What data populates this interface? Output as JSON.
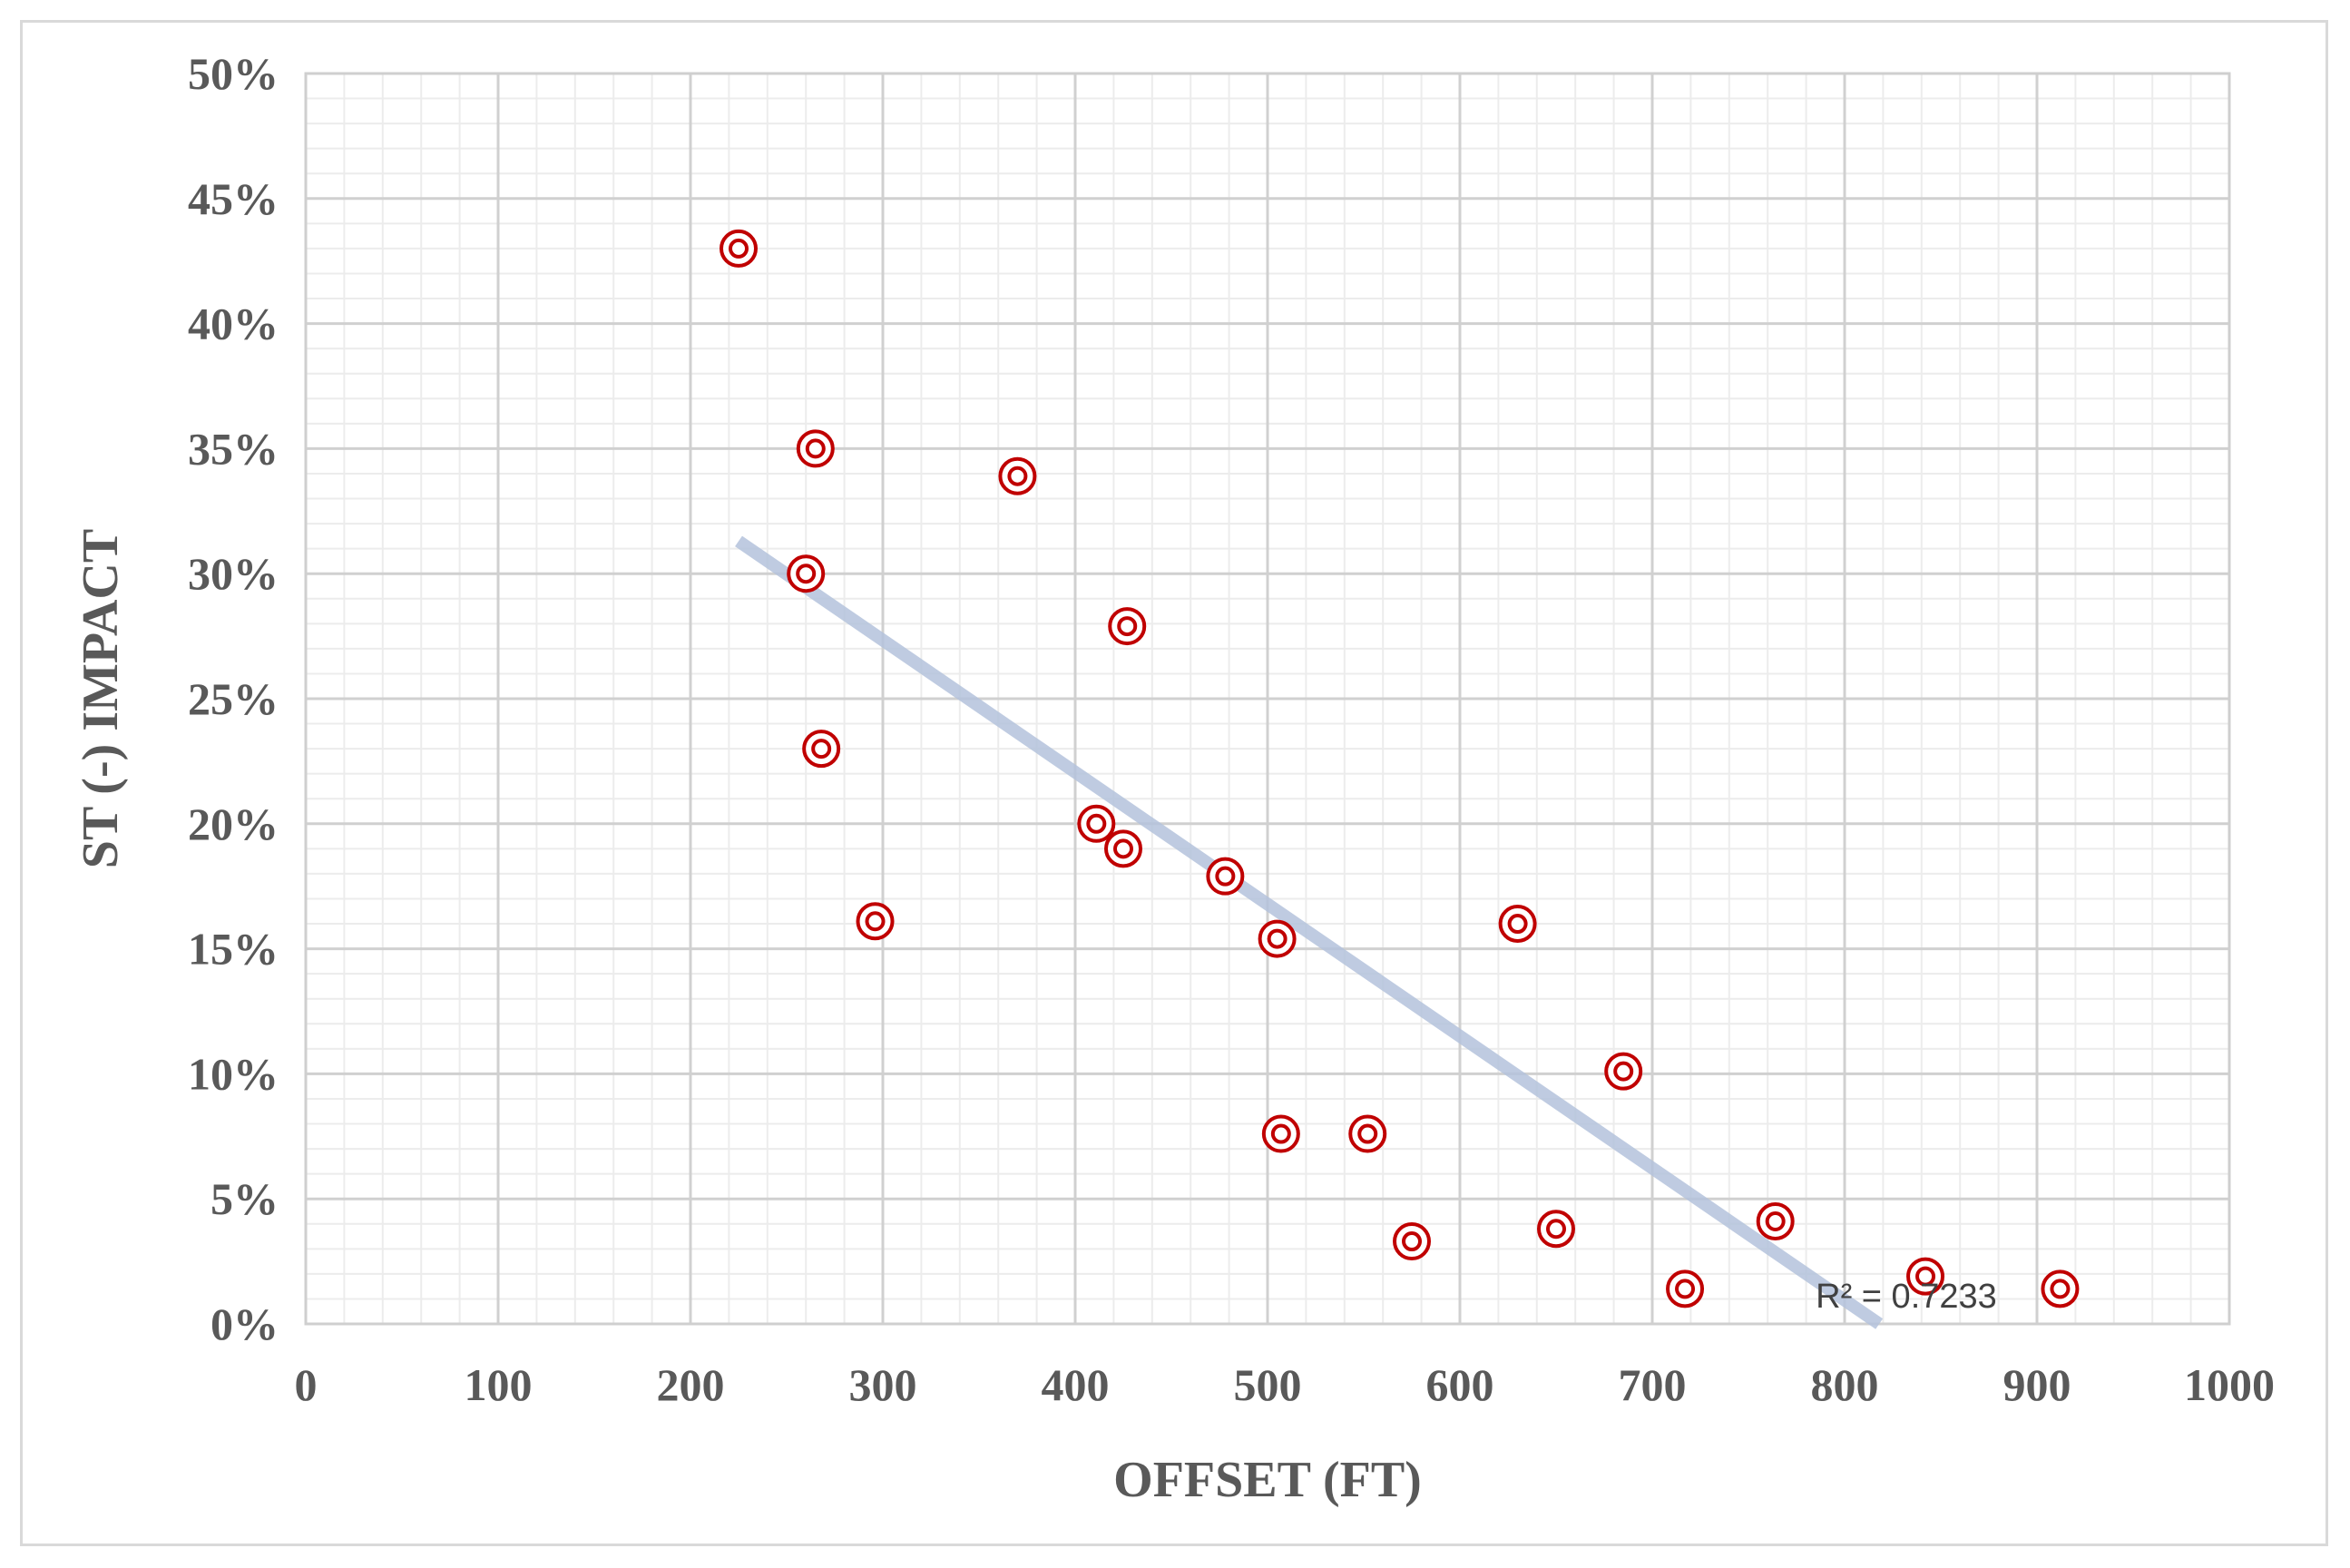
{
  "chart_data": {
    "type": "scatter",
    "title": "",
    "xlabel": "OFFSET (FT)",
    "ylabel": "ST (-) IMPACT",
    "xlim": [
      0,
      1000
    ],
    "ylim": [
      0,
      0.5
    ],
    "x_ticks": [
      0,
      100,
      200,
      300,
      400,
      500,
      600,
      700,
      800,
      900,
      1000
    ],
    "x_tick_labels": [
      "0",
      "100",
      "200",
      "300",
      "400",
      "500",
      "600",
      "700",
      "800",
      "900",
      "1000"
    ],
    "y_ticks": [
      0,
      0.05,
      0.1,
      0.15,
      0.2,
      0.25,
      0.3,
      0.35,
      0.4,
      0.45,
      0.5
    ],
    "y_tick_labels": [
      "0%",
      "5%",
      "10%",
      "15%",
      "20%",
      "25%",
      "30%",
      "35%",
      "40%",
      "45%",
      "50%"
    ],
    "grid": true,
    "minor_grid": true,
    "series": [
      {
        "name": "ST (-) Impact",
        "marker": "double-circle",
        "color": "#c00000",
        "points": [
          {
            "x": 225,
            "y": 0.43
          },
          {
            "x": 265,
            "y": 0.35
          },
          {
            "x": 370,
            "y": 0.339
          },
          {
            "x": 260,
            "y": 0.3
          },
          {
            "x": 427,
            "y": 0.279
          },
          {
            "x": 268,
            "y": 0.23
          },
          {
            "x": 411,
            "y": 0.2
          },
          {
            "x": 425,
            "y": 0.19
          },
          {
            "x": 478,
            "y": 0.179
          },
          {
            "x": 296,
            "y": 0.161
          },
          {
            "x": 630,
            "y": 0.16
          },
          {
            "x": 505,
            "y": 0.154
          },
          {
            "x": 685,
            "y": 0.101
          },
          {
            "x": 507,
            "y": 0.076
          },
          {
            "x": 552,
            "y": 0.076
          },
          {
            "x": 764,
            "y": 0.041
          },
          {
            "x": 650,
            "y": 0.038
          },
          {
            "x": 575,
            "y": 0.033
          },
          {
            "x": 842,
            "y": 0.019
          },
          {
            "x": 717,
            "y": 0.014
          },
          {
            "x": 912,
            "y": 0.014
          }
        ]
      }
    ],
    "trendline": {
      "type": "linear",
      "color": "#b4c3dc",
      "x_start": 225,
      "y_start": 0.313,
      "x_end": 818,
      "y_end": 0.0,
      "r2_label": "R² = 0.7233",
      "r2_value": 0.7233
    }
  }
}
